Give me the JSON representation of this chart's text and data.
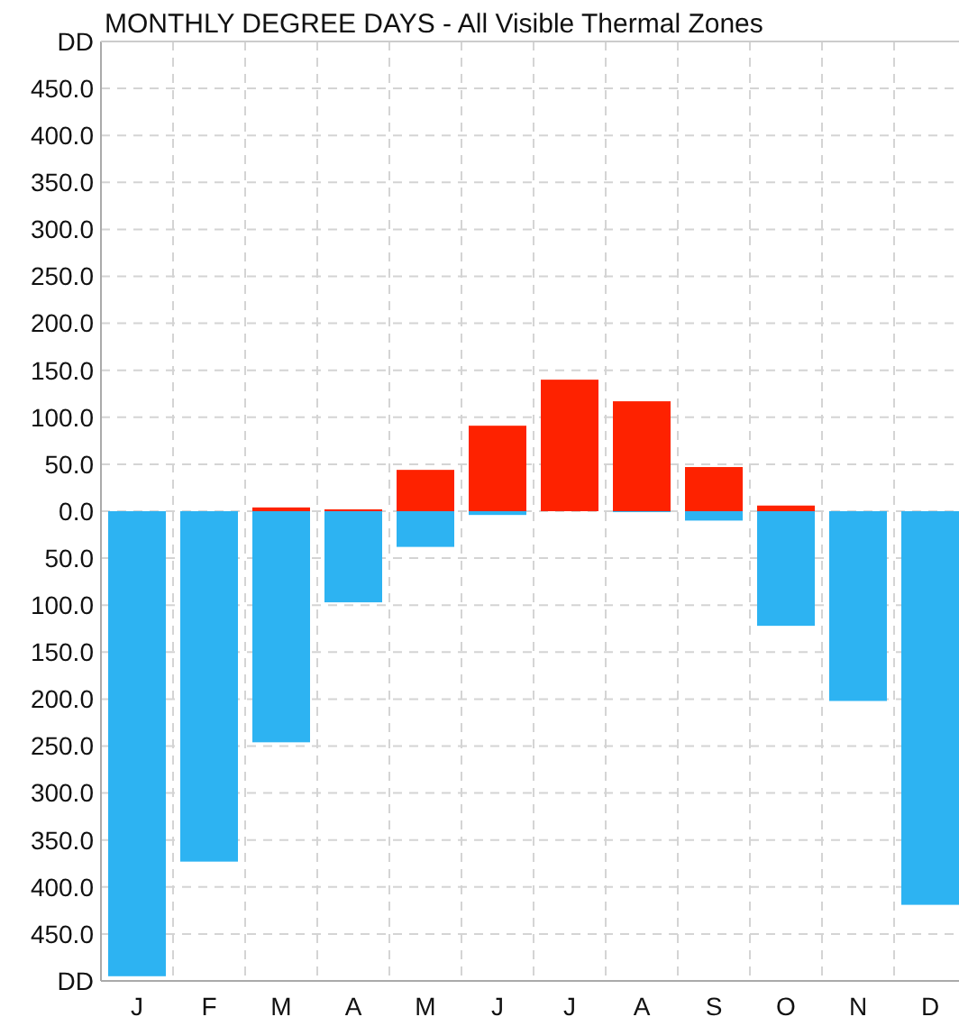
{
  "chart_data": {
    "type": "bar",
    "title": "MONTHLY DEGREE DAYS - All Visible Thermal Zones",
    "categories": [
      "J",
      "F",
      "M",
      "A",
      "M",
      "J",
      "J",
      "A",
      "S",
      "O",
      "N",
      "D"
    ],
    "grid": true,
    "series": [
      {
        "color": "#2db3f2",
        "values": [
          -495,
          -373,
          -246,
          -97,
          -38,
          -4,
          0,
          -1,
          -10,
          -122,
          -202,
          -419
        ]
      },
      {
        "color": "#fe2200",
        "values": [
          0,
          0,
          4,
          2,
          44,
          91,
          140,
          117,
          47,
          6,
          0,
          0
        ]
      }
    ],
    "ylim": [
      -500,
      500
    ],
    "yticks": [
      {
        "value": -500,
        "label": "DD"
      },
      {
        "value": -450,
        "label": "450.0"
      },
      {
        "value": -400,
        "label": "400.0"
      },
      {
        "value": -350,
        "label": "350.0"
      },
      {
        "value": -300,
        "label": "300.0"
      },
      {
        "value": -250,
        "label": "250.0"
      },
      {
        "value": -200,
        "label": "200.0"
      },
      {
        "value": -150,
        "label": "150.0"
      },
      {
        "value": -100,
        "label": "100.0"
      },
      {
        "value": -50,
        "label": "50.0"
      },
      {
        "value": 0,
        "label": "0.0"
      },
      {
        "value": 50,
        "label": "50.0"
      },
      {
        "value": 100,
        "label": "100.0"
      },
      {
        "value": 150,
        "label": "150.0"
      },
      {
        "value": 200,
        "label": "200.0"
      },
      {
        "value": 250,
        "label": "250.0"
      },
      {
        "value": 300,
        "label": "300.0"
      },
      {
        "value": 350,
        "label": "350.0"
      },
      {
        "value": 400,
        "label": "400.0"
      },
      {
        "value": 450,
        "label": "450.0"
      },
      {
        "value": 500,
        "label": "DD"
      }
    ]
  }
}
